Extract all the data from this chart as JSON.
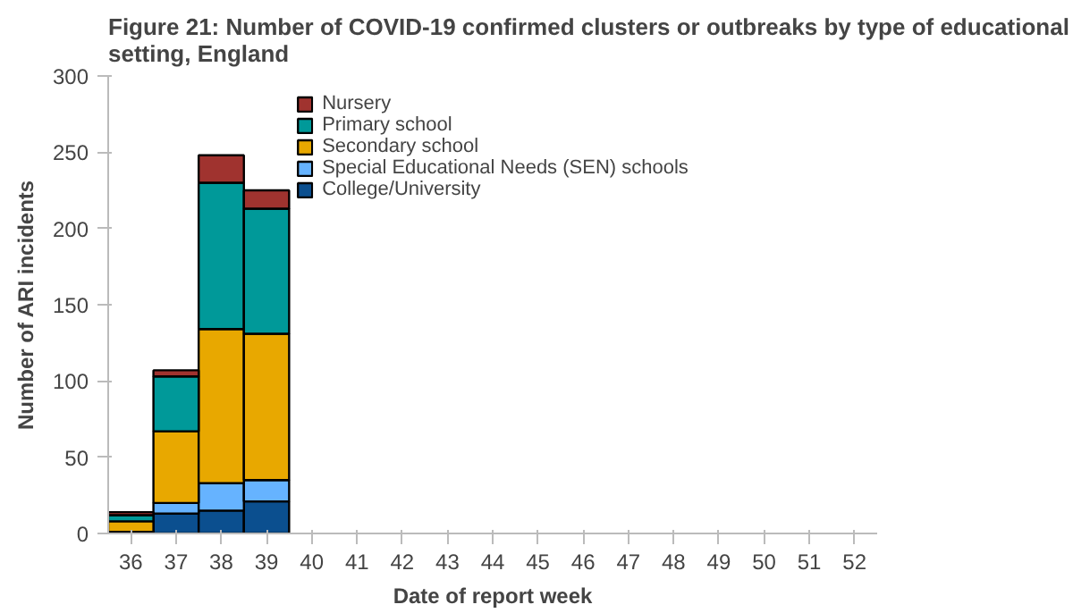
{
  "chart_data": {
    "type": "bar",
    "stacked": true,
    "title": "Figure 21: Number of COVID-19 confirmed clusters or outbreaks by type of educational setting, England",
    "xlabel": "Date of report week",
    "ylabel": "Number of ARI incidents",
    "categories": [
      "36",
      "37",
      "38",
      "39",
      "40",
      "41",
      "42",
      "43",
      "44",
      "45",
      "46",
      "47",
      "48",
      "49",
      "50",
      "51",
      "52"
    ],
    "series": [
      {
        "name": "College/University",
        "color": "#0b4f8f",
        "values": [
          1,
          13,
          15,
          21,
          null,
          null,
          null,
          null,
          null,
          null,
          null,
          null,
          null,
          null,
          null,
          null,
          null
        ]
      },
      {
        "name": "Special Educational Needs (SEN) schools",
        "color": "#66b3ff",
        "values": [
          0,
          7,
          18,
          14,
          null,
          null,
          null,
          null,
          null,
          null,
          null,
          null,
          null,
          null,
          null,
          null,
          null
        ]
      },
      {
        "name": "Secondary school",
        "color": "#e8a800",
        "values": [
          7,
          47,
          101,
          96,
          null,
          null,
          null,
          null,
          null,
          null,
          null,
          null,
          null,
          null,
          null,
          null,
          null
        ]
      },
      {
        "name": "Primary school",
        "color": "#009999",
        "values": [
          4,
          36,
          96,
          82,
          null,
          null,
          null,
          null,
          null,
          null,
          null,
          null,
          null,
          null,
          null,
          null,
          null
        ]
      },
      {
        "name": "Nursery",
        "color": "#a0332f",
        "values": [
          2,
          4,
          18,
          12,
          null,
          null,
          null,
          null,
          null,
          null,
          null,
          null,
          null,
          null,
          null,
          null,
          null
        ]
      }
    ],
    "ylim": [
      0,
      300
    ],
    "yticks": [
      0,
      50,
      100,
      150,
      200,
      250,
      300
    ],
    "grid": false,
    "legend": "top"
  }
}
